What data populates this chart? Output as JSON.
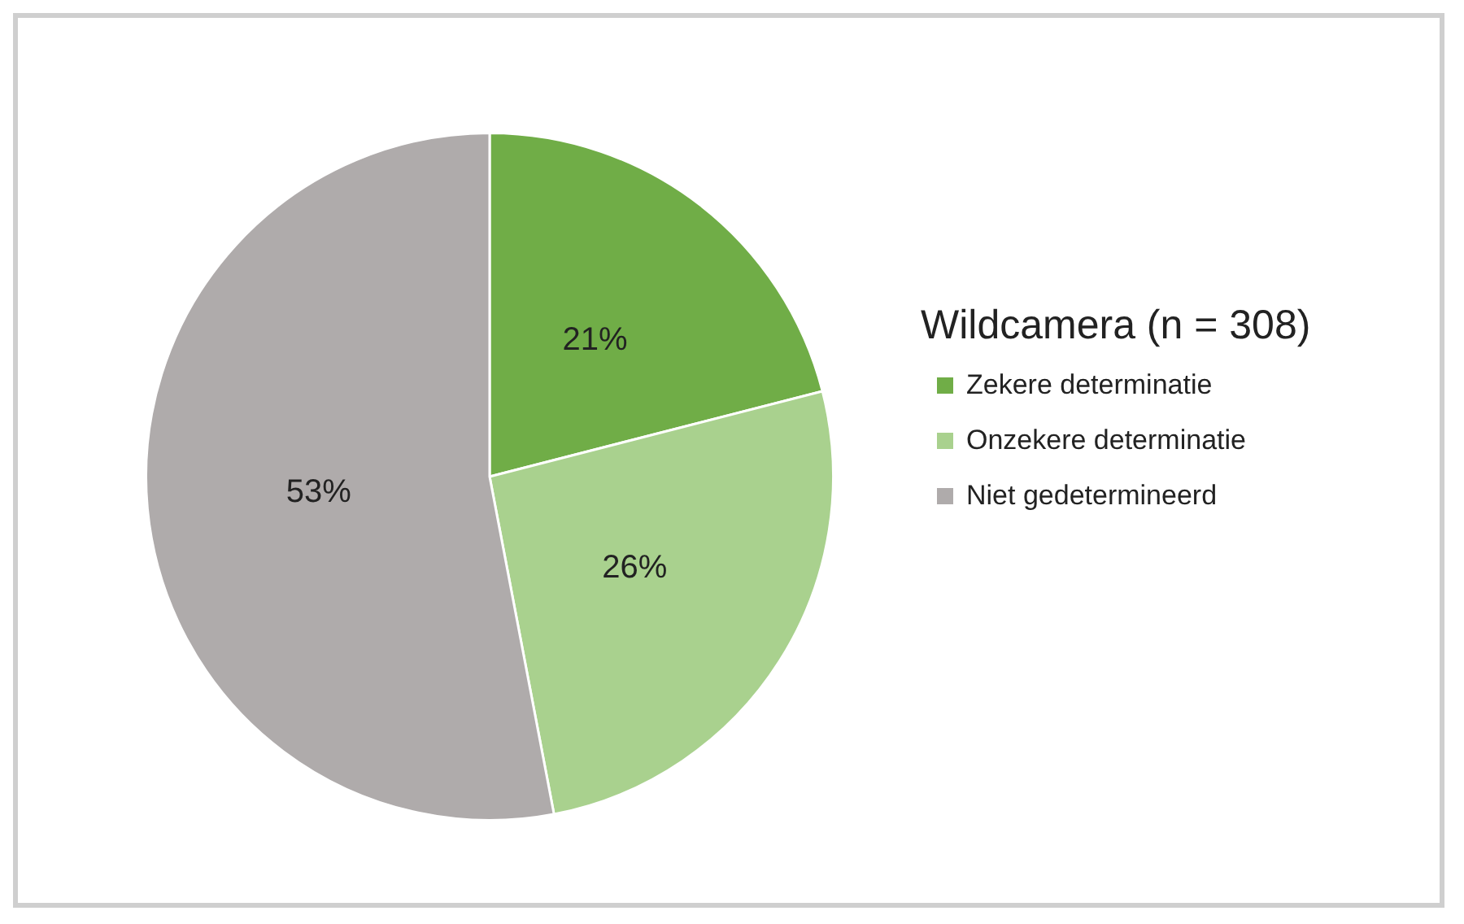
{
  "chart_data": {
    "type": "pie",
    "legend_title": "Wildcamera (n = 308)",
    "categories": [
      "Zekere determinatie",
      "Onzekere determinatie",
      "Niet gedetermineerd"
    ],
    "values": [
      21,
      26,
      53
    ],
    "value_labels": [
      "21%",
      "26%",
      "53%"
    ],
    "colors": [
      "#70ad47",
      "#a9d18e",
      "#afabab"
    ],
    "legend": "right"
  }
}
